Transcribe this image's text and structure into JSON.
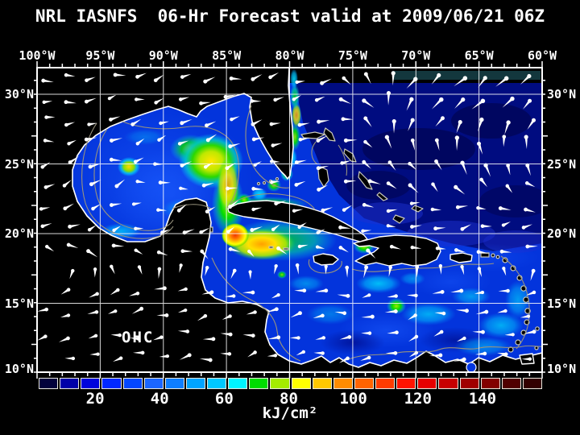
{
  "title": "NRL IASNFS  06-Hr Forecast valid at 2009/06/21 06Z",
  "axes": {
    "lon_labels": [
      "100°W",
      "95°W",
      "90°W",
      "85°W",
      "80°W",
      "75°W",
      "70°W",
      "65°W",
      "60°W"
    ],
    "lat_labels": [
      "30°N",
      "25°N",
      "20°N",
      "15°N",
      "10°N"
    ]
  },
  "map": {
    "region_label": "OHC",
    "land_color": "#000000",
    "coast_color": "#FFFFFF",
    "contour_color": "#98937E",
    "grid_color": "#FFFFFF",
    "vector_color": "#FFFFFF",
    "ocean_base_color": "#0334DC"
  },
  "colorbar": {
    "unit": "kJ/cm²",
    "tick_labels": [
      "20",
      "40",
      "60",
      "80",
      "100",
      "120",
      "140"
    ],
    "tick_values": [
      20,
      40,
      60,
      80,
      100,
      120,
      140
    ],
    "value_min": 2.5,
    "value_max": 158.5,
    "colors": [
      "#02023C",
      "#0000A8",
      "#0004DC",
      "#0128FF",
      "#0347FF",
      "#1B66FF",
      "#0E7EFF",
      "#00A4FF",
      "#00C8FF",
      "#00F5FF",
      "#00DC00",
      "#A4EB00",
      "#FFFF00",
      "#FFC800",
      "#FF8C00",
      "#FF6400",
      "#FF3C00",
      "#FF1400",
      "#E60000",
      "#C80000",
      "#A00000",
      "#820000",
      "#500000",
      "#320000"
    ]
  },
  "chart_data": {
    "type": "heatmap",
    "title": "NRL IASNFS 06-Hr Forecast valid at 2009/06/21 06Z",
    "variable": "OHC (Ocean Heat Content)",
    "unit": "kJ/cm²",
    "x_ticks_longitude": [
      "100°W",
      "95°W",
      "90°W",
      "85°W",
      "80°W",
      "75°W",
      "70°W",
      "65°W",
      "60°W"
    ],
    "y_ticks_latitude": [
      "30°N",
      "25°N",
      "20°N",
      "15°N",
      "10°N"
    ],
    "colorbar_ticks": [
      20,
      40,
      60,
      80,
      100,
      120,
      140
    ],
    "colorbar_range_estimate": [
      2.5,
      158.5
    ],
    "overlay": "white surface current/wind vectors on ~1 degree grid",
    "features": [
      {
        "name": "warm-core eddy, western Gulf of Mexico",
        "approx_position": "93°W 25°N",
        "approx_value": "80-90 kJ/cm²"
      },
      {
        "name": "Loop Current warm pool NW of Cuba",
        "approx_position": "86°W 23.5°N",
        "approx_value": "70-95 kJ/cm²"
      },
      {
        "name": "OHC maximum SW of Cuba",
        "approx_position": "84.5°W 20°N",
        "approx_value": "105-115 kJ/cm²"
      },
      {
        "name": "warm band NW Caribbean west of Jamaica",
        "approx_position": "83°W 19-21°N",
        "approx_value": "80-100 kJ/cm²"
      },
      {
        "name": "Gulf Stream ribbon along Florida east coast",
        "approx_position": "80°W 24-31°N",
        "approx_value": "60-85 kJ/cm²"
      },
      {
        "name": "warm spot central Caribbean",
        "approx_position": "71.5°W 15°N",
        "approx_value": "~70 kJ/cm²"
      },
      {
        "name": "warm spot SW of Haiti",
        "approx_position": "72°W 19.5°N",
        "approx_value": "~75 kJ/cm²"
      },
      {
        "name": "cold subtropical Atlantic NE of Bahamas",
        "approx_value": "<20 kJ/cm²"
      }
    ]
  }
}
